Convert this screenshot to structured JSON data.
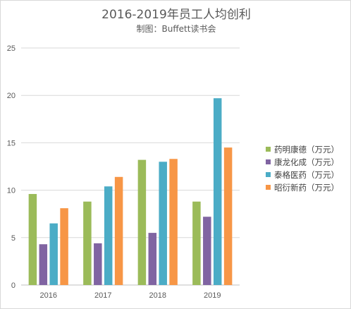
{
  "chart_data": {
    "type": "bar",
    "title": "2016-2019年员工人均创利",
    "subtitle": "制图：Buffett读书会",
    "categories": [
      "2016",
      "2017",
      "2018",
      "2019"
    ],
    "series": [
      {
        "name": "药明康德（万元）",
        "color": "#9BBB59",
        "values": [
          9.6,
          8.8,
          13.2,
          8.8
        ]
      },
      {
        "name": "康龙化成（万元）",
        "color": "#8064A2",
        "values": [
          4.3,
          4.4,
          5.5,
          7.2
        ]
      },
      {
        "name": "泰格医药（万元）",
        "color": "#4BACC6",
        "values": [
          6.5,
          10.4,
          13.0,
          19.7
        ]
      },
      {
        "name": "昭衍新药（万元）",
        "color": "#F79646",
        "values": [
          8.1,
          11.4,
          13.3,
          14.5
        ]
      }
    ],
    "xlabel": "",
    "ylabel": "",
    "ylim": [
      0,
      25
    ],
    "yticks": [
      "0",
      "5",
      "10",
      "15",
      "20",
      "25"
    ],
    "grid": true,
    "legend_position": "right"
  }
}
